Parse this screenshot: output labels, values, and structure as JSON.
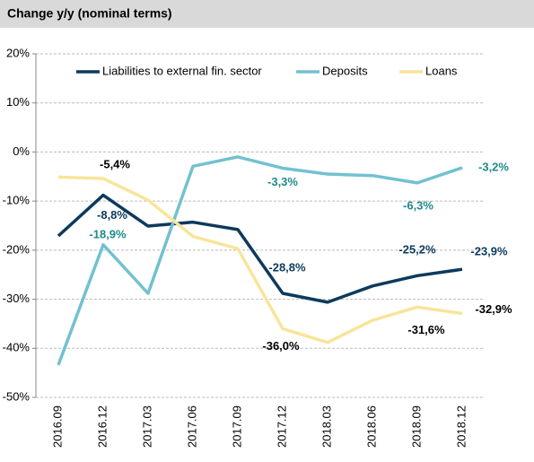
{
  "chart_data": {
    "type": "line",
    "title": "Change y/y (nominal terms)",
    "categories": [
      "2016.09",
      "2016.12",
      "2017.03",
      "2017.06",
      "2017.09",
      "2017.12",
      "2018.03",
      "2018.06",
      "2018.09",
      "2018.12"
    ],
    "series": [
      {
        "name": "Liabilities to external fin. sector",
        "color": "#0d3a5c",
        "values": [
          -17.1,
          -8.8,
          -15.1,
          -14.3,
          -15.8,
          -28.8,
          -30.6,
          -27.3,
          -25.2,
          -23.9
        ],
        "value_labels": [
          null,
          "-8,8%",
          null,
          null,
          null,
          "-28,8%",
          null,
          null,
          "-25,2%",
          "-23,9%"
        ],
        "label_color": "#0d3a5c"
      },
      {
        "name": "Deposits",
        "color": "#72c1d0",
        "values": [
          -43.4,
          -18.9,
          -28.8,
          -2.9,
          -1.0,
          -3.3,
          -4.5,
          -4.8,
          -6.3,
          -3.2
        ],
        "value_labels": [
          null,
          "-18,9%",
          null,
          null,
          null,
          "-3,3%",
          null,
          null,
          "-6,3%",
          "-3,2%"
        ],
        "label_color": "#1f8a8a"
      },
      {
        "name": "Loans",
        "color": "#f8e59a",
        "values": [
          -5.1,
          -5.4,
          -9.8,
          -17.2,
          -19.7,
          -36.0,
          -38.8,
          -34.3,
          -31.6,
          -32.9
        ],
        "value_labels": [
          null,
          "-5,4%",
          null,
          null,
          null,
          "-36,0%",
          null,
          null,
          "-31,6%",
          "-32,9%"
        ],
        "label_color": "#000000"
      }
    ],
    "ylim": [
      -50,
      20
    ],
    "yticks": [
      {
        "value": -50,
        "label": "-50%"
      },
      {
        "value": -40,
        "label": "-40%"
      },
      {
        "value": -30,
        "label": "-30%"
      },
      {
        "value": -20,
        "label": "-20%"
      },
      {
        "value": -10,
        "label": "-10%"
      },
      {
        "value": 0,
        "label": "0%"
      },
      {
        "value": 10,
        "label": "10%"
      },
      {
        "value": 20,
        "label": "20%"
      }
    ],
    "grid": true,
    "legend": "top"
  }
}
